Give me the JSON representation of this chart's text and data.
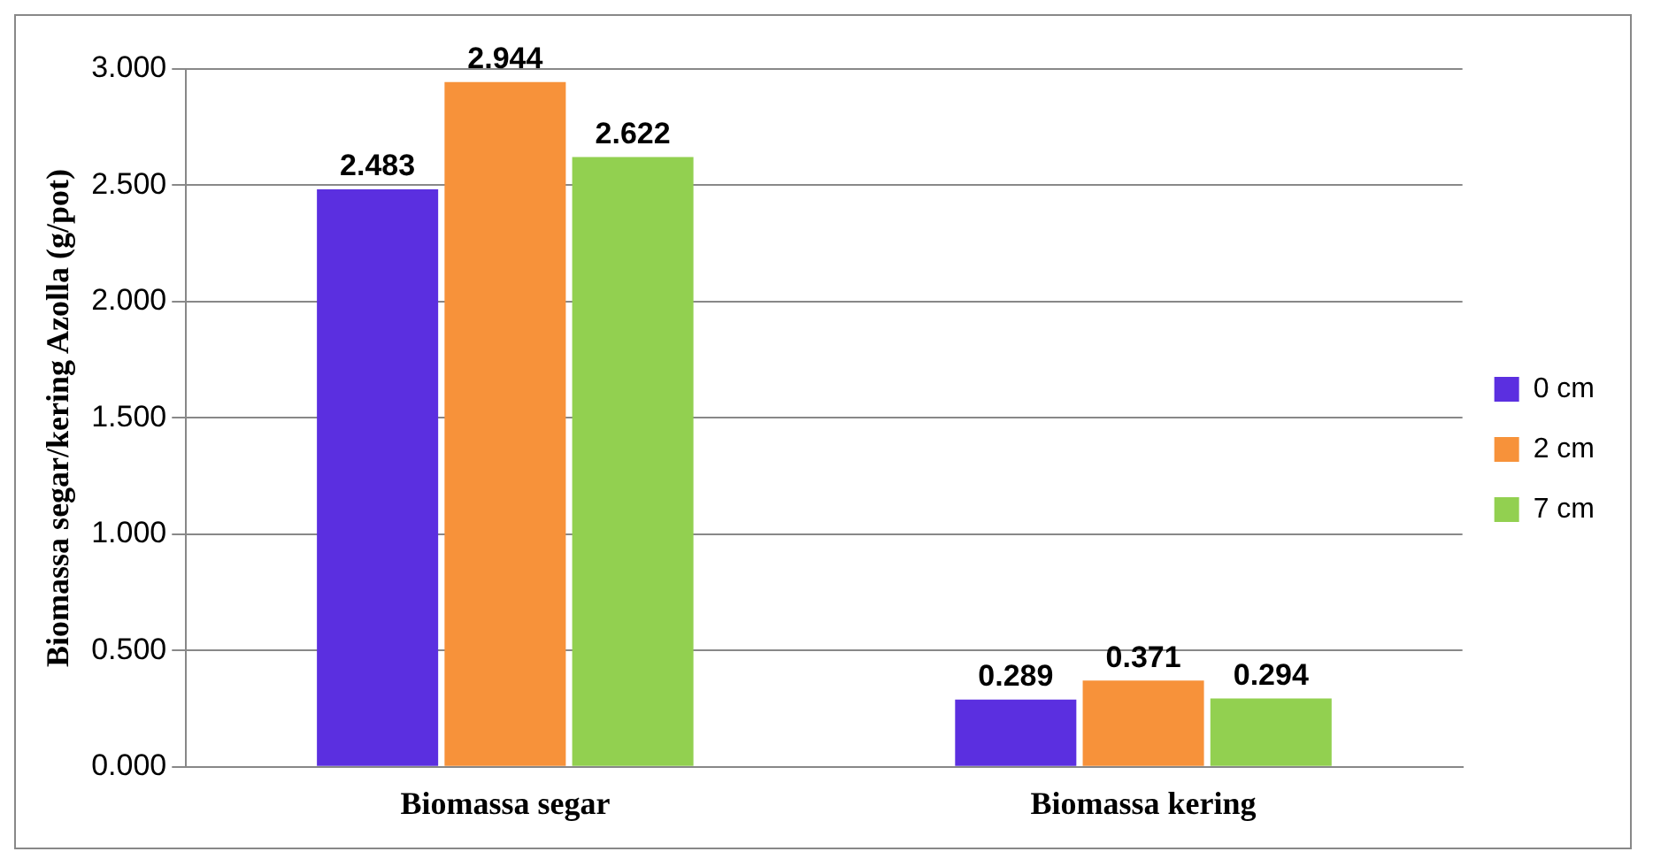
{
  "chart_data": {
    "type": "bar",
    "categories": [
      "Biomassa segar",
      "Biomassa kering"
    ],
    "ylabel": "Biomassa segar/kering Azolla (g/pot)",
    "series": [
      {
        "name": "0 cm",
        "color": "#5b2fe0",
        "values": [
          2.483,
          0.289
        ]
      },
      {
        "name": "2 cm",
        "color": "#f7923a",
        "values": [
          2.944,
          0.371
        ]
      },
      {
        "name": "7 cm",
        "color": "#92d050",
        "values": [
          2.622,
          0.294
        ]
      }
    ],
    "ylim": [
      0,
      3
    ],
    "yticks": [
      {
        "value": 0,
        "label": "0.000"
      },
      {
        "value": 0.5,
        "label": "0.500"
      },
      {
        "value": 1,
        "label": "1.000"
      },
      {
        "value": 1.5,
        "label": "1.500"
      },
      {
        "value": 2,
        "label": "2.000"
      },
      {
        "value": 2.5,
        "label": "2.500"
      },
      {
        "value": 3,
        "label": "3.000"
      }
    ],
    "grid": "y",
    "legend": "right",
    "data_labels": true
  }
}
